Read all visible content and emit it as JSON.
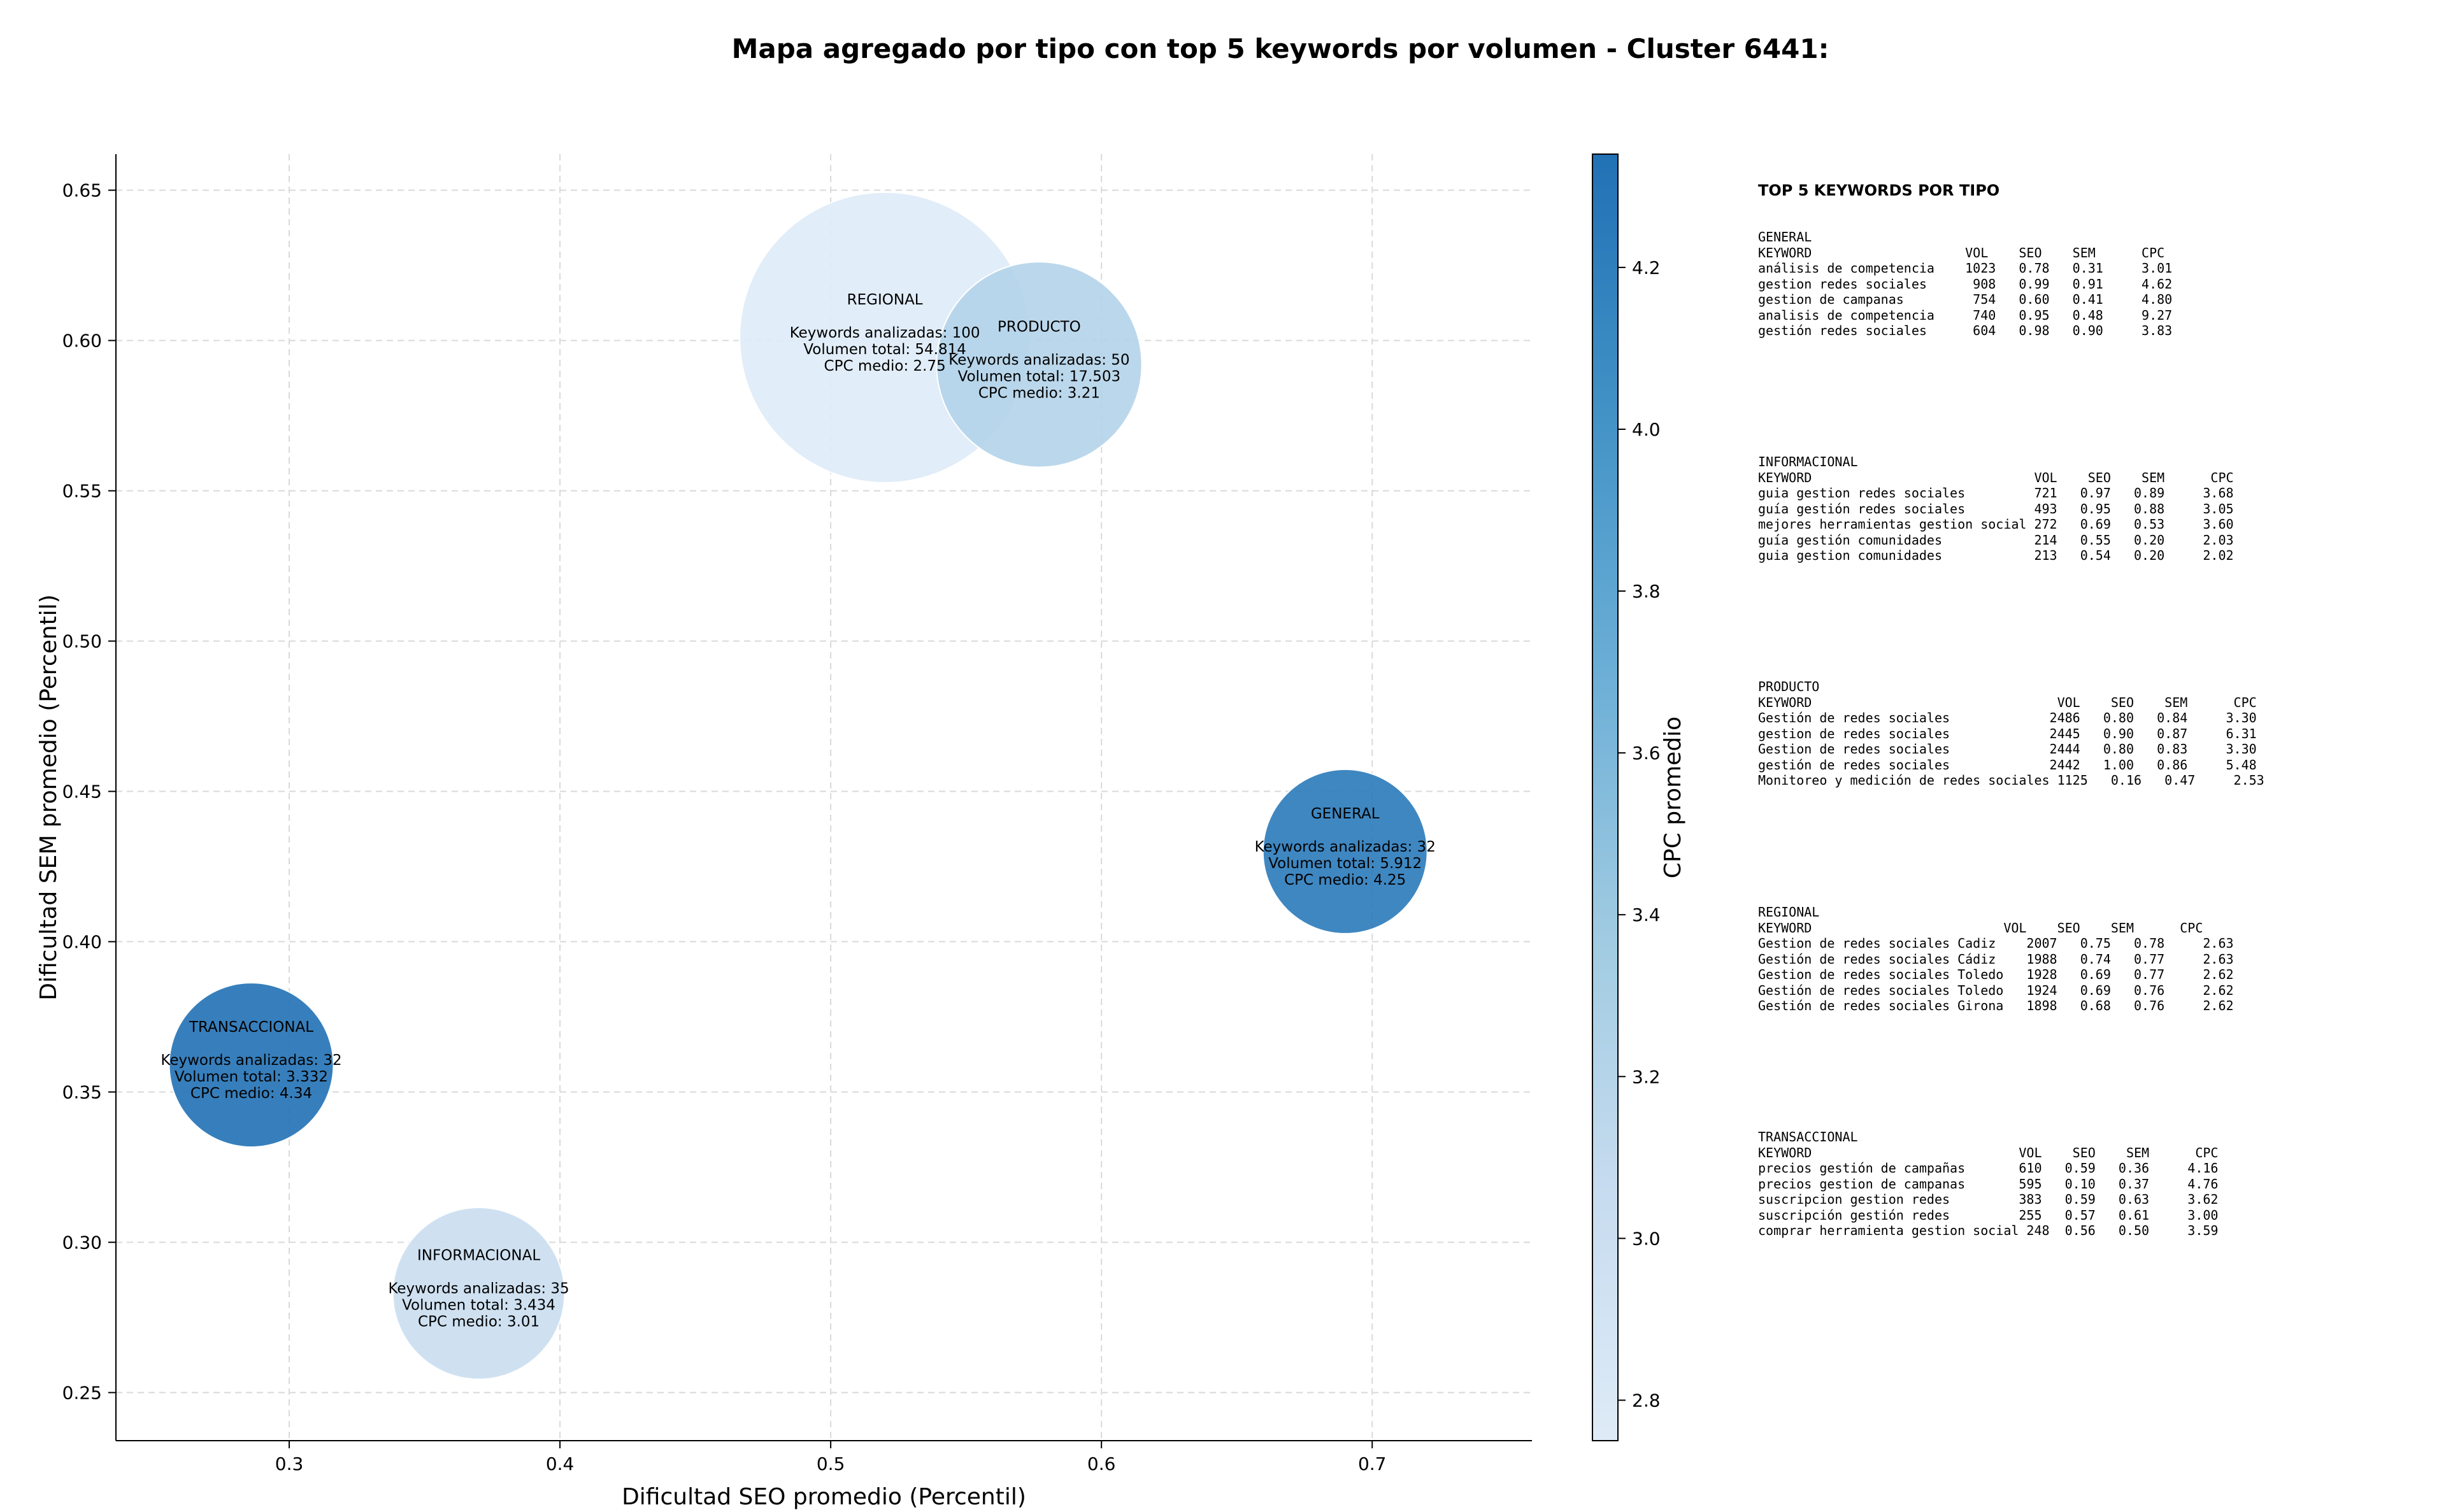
{
  "chart_data": {
    "type": "scatter",
    "title": "Mapa agregado por tipo con top 5 keywords por volumen - Cluster 6441:",
    "xlabel": "Dificultad SEO promedio (Percentil)",
    "ylabel": "Dificultad SEM promedio (Percentil)",
    "colorbar_label": "CPC promedio",
    "xlim": [
      0.236,
      0.759
    ],
    "ylim": [
      0.234,
      0.662
    ],
    "xticks": [
      "0.3",
      "0.4",
      "0.5",
      "0.6",
      "0.7"
    ],
    "yticks": [
      "0.25",
      "0.30",
      "0.35",
      "0.40",
      "0.45",
      "0.50",
      "0.55",
      "0.60",
      "0.65"
    ],
    "cbar_range": [
      2.75,
      4.34
    ],
    "cbar_ticks": [
      "2.8",
      "3.0",
      "3.2",
      "3.4",
      "3.6",
      "3.8",
      "4.0",
      "4.2"
    ],
    "grid": true,
    "points": [
      {
        "label": "REGIONAL",
        "x": 0.52,
        "y": 0.601,
        "keywords": 100,
        "cpc": 2.75,
        "lines": [
          "Keywords analizadas: 100",
          "Volumen total: 54.814",
          "CPC medio: 2.75"
        ]
      },
      {
        "label": "PRODUCTO",
        "x": 0.577,
        "y": 0.592,
        "keywords": 50,
        "cpc": 3.21,
        "lines": [
          "Keywords analizadas: 50",
          "Volumen total: 17.503",
          "CPC medio: 3.21"
        ]
      },
      {
        "label": "GENERAL",
        "x": 0.69,
        "y": 0.43,
        "keywords": 32,
        "cpc": 4.25,
        "lines": [
          "Keywords analizadas: 32",
          "Volumen total: 5.912",
          "CPC medio: 4.25"
        ]
      },
      {
        "label": "TRANSACCIONAL",
        "x": 0.286,
        "y": 0.359,
        "keywords": 32,
        "cpc": 4.34,
        "lines": [
          "Keywords analizadas: 32",
          "Volumen total: 3.332",
          "CPC medio: 4.34"
        ]
      },
      {
        "label": "INFORMACIONAL",
        "x": 0.37,
        "y": 0.283,
        "keywords": 35,
        "cpc": 3.01,
        "lines": [
          "Keywords analizadas: 35",
          "Volumen total: 3.434",
          "CPC medio: 3.01"
        ]
      }
    ]
  },
  "tables": {
    "heading": "TOP 5 KEYWORDS POR TIPO",
    "blocks": [
      {
        "type": "GENERAL",
        "lines": [
          "KEYWORD                    VOL    SEO    SEM      CPC",
          "análisis de competencia    1023   0.78   0.31     3.01",
          "gestion redes sociales      908   0.99   0.91     4.62",
          "gestion de campanas         754   0.60   0.41     4.80",
          "analisis de competencia     740   0.95   0.48     9.27",
          "gestión redes sociales      604   0.98   0.90     3.83"
        ]
      },
      {
        "type": "INFORMACIONAL",
        "lines": [
          "KEYWORD                             VOL    SEO    SEM      CPC",
          "guia gestion redes sociales         721   0.97   0.89     3.68",
          "guía gestión redes sociales         493   0.95   0.88     3.05",
          "mejores herramientas gestion social 272   0.69   0.53     3.60",
          "guía gestión comunidades            214   0.55   0.20     2.03",
          "guia gestion comunidades            213   0.54   0.20     2.02"
        ]
      },
      {
        "type": "PRODUCTO",
        "lines": [
          "KEYWORD                                VOL    SEO    SEM      CPC",
          "Gestión de redes sociales             2486   0.80   0.84     3.30",
          "gestion de redes sociales             2445   0.90   0.87     6.31",
          "Gestion de redes sociales             2444   0.80   0.83     3.30",
          "gestión de redes sociales             2442   1.00   0.86     5.48",
          "Monitoreo y medición de redes sociales 1125   0.16   0.47     2.53"
        ]
      },
      {
        "type": "REGIONAL",
        "lines": [
          "KEYWORD                         VOL    SEO    SEM      CPC",
          "Gestion de redes sociales Cadiz    2007   0.75   0.78     2.63",
          "Gestión de redes sociales Cádiz    1988   0.74   0.77     2.63",
          "Gestion de redes sociales Toledo   1928   0.69   0.77     2.62",
          "Gestión de redes sociales Toledo   1924   0.69   0.76     2.62",
          "Gestión de redes sociales Girona   1898   0.68   0.76     2.62"
        ]
      },
      {
        "type": "TRANSACCIONAL",
        "lines": [
          "KEYWORD                           VOL    SEO    SEM      CPC",
          "precios gestión de campañas       610   0.59   0.36     4.16",
          "precios gestion de campanas       595   0.10   0.37     4.76",
          "suscripcion gestion redes         383   0.59   0.63     3.62",
          "suscripción gestión redes         255   0.57   0.61     3.00",
          "comprar herramienta gestion social 248  0.56   0.50     3.59"
        ]
      }
    ]
  }
}
